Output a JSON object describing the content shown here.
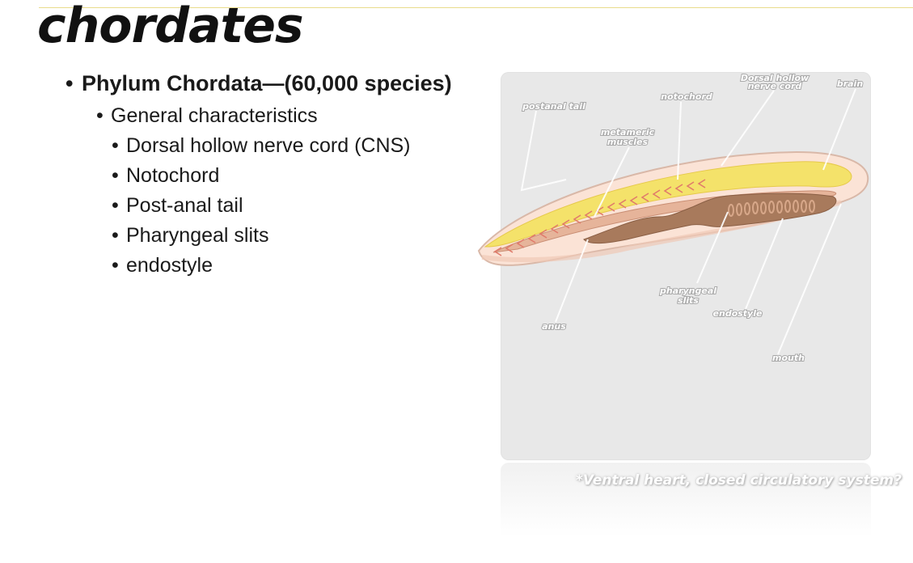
{
  "slide": {
    "title": "chordates",
    "bullets": {
      "level1": "Phylum Chordata—(60,000 species)",
      "level2": "General characteristics",
      "level3": [
        "Dorsal hollow nerve cord (CNS)",
        "Notochord",
        "Post-anal tail",
        "Pharyngeal slits",
        "endostyle"
      ]
    }
  },
  "figure": {
    "labels": {
      "dorsal_hollow_nerve_cord_line1": "Dorsal hollow",
      "dorsal_hollow_nerve_cord_line2": "nerve cord",
      "brain": "brain",
      "notochord": "notochord",
      "postanal_tail": "postanal tail",
      "metameric_muscles_line1": "metameric",
      "metameric_muscles_line2": "muscles",
      "pharyngeal_slits_line1": "pharyngeal",
      "pharyngeal_slits_line2": "slits",
      "endostyle": "endostyle",
      "anus": "anus",
      "mouth": "mouth"
    },
    "caption": "*Ventral heart, closed circulatory system?"
  },
  "colors": {
    "title_rule": "#e9dc8c",
    "panel_background": "#e8e8e8",
    "body_fill": "#fbe3d6",
    "nerve_cord": "#f4e26a",
    "gut": "#a87a5c",
    "muscle_chevrons": "#e07a6a"
  }
}
